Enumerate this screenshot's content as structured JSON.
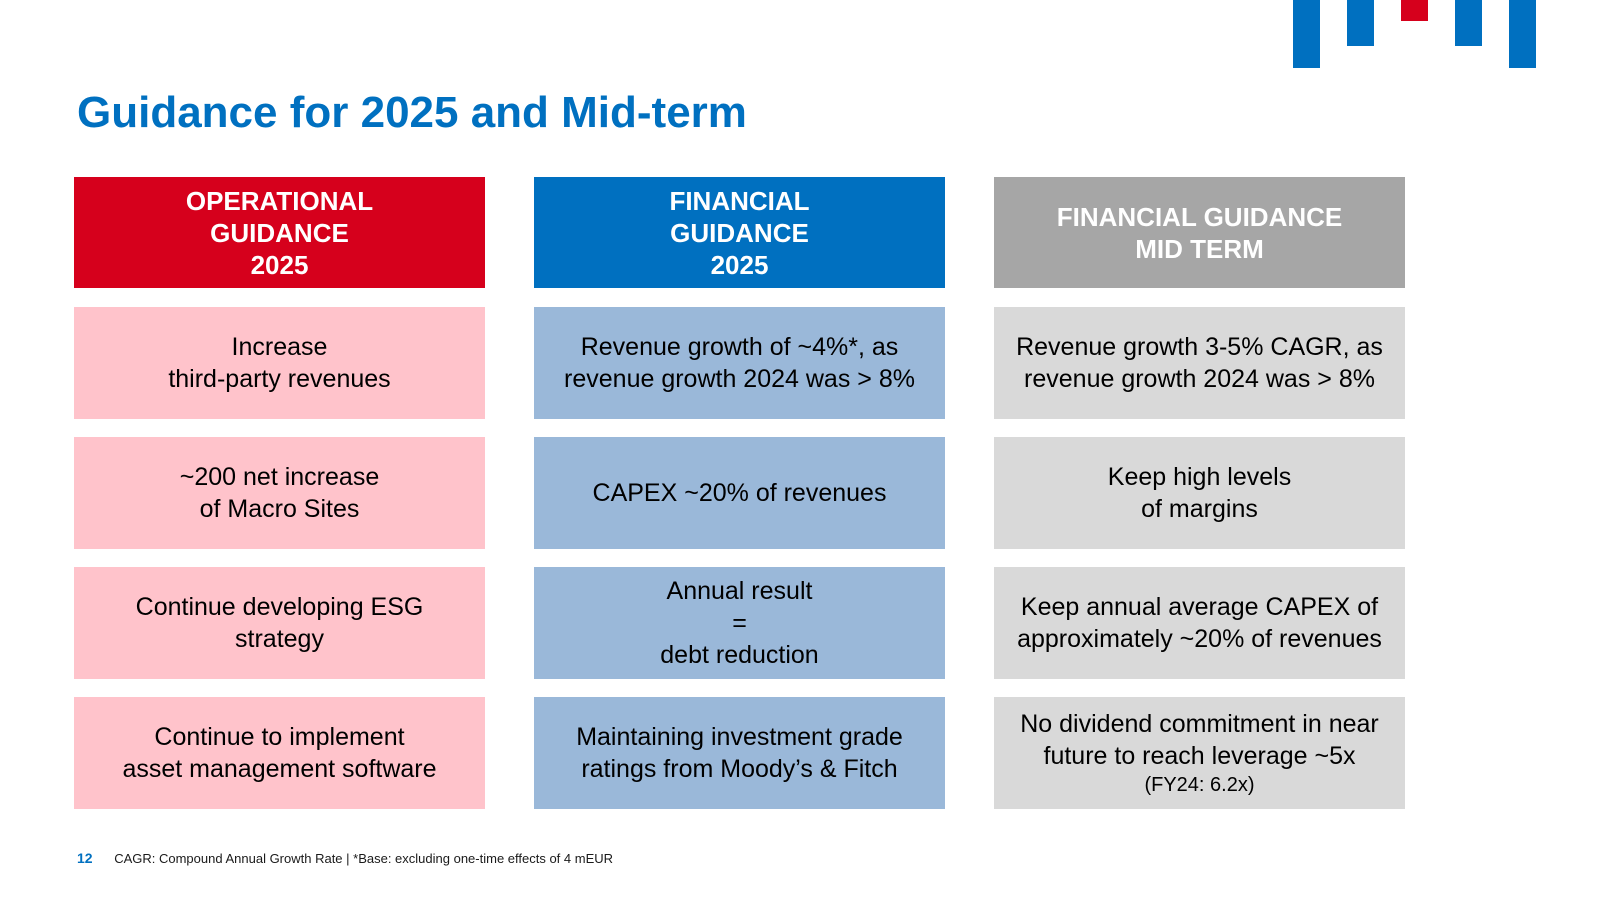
{
  "title": "Guidance for 2025 and Mid-term",
  "colors": {
    "title_blue": "#0070c0",
    "red_header": "#d6001c",
    "blue_header": "#0070c0",
    "gray_header": "#a6a6a6",
    "pink_cell": "#ffc3cb",
    "light_blue_cell": "#9ab8d9",
    "light_gray_cell": "#d9d9d9",
    "logo_blue": "#0070c0",
    "logo_red": "#d6001c"
  },
  "columns": [
    {
      "header": "OPERATIONAL\nGUIDANCE\n2025",
      "cells": [
        {
          "text": "Increase\nthird-party revenues"
        },
        {
          "text": "~200 net increase\nof Macro Sites"
        },
        {
          "text": "Continue developing ESG\nstrategy"
        },
        {
          "text": "Continue to implement\nasset management software"
        }
      ]
    },
    {
      "header": "FINANCIAL\nGUIDANCE\n2025",
      "cells": [
        {
          "text": "Revenue growth of ~4%*, as\nrevenue growth 2024 was > 8%"
        },
        {
          "text": "CAPEX ~20% of revenues"
        },
        {
          "text": "Annual result\n=\ndebt reduction"
        },
        {
          "text": "Maintaining investment grade\nratings from Moody’s & Fitch"
        }
      ]
    },
    {
      "header": "FINANCIAL GUIDANCE\nMID TERM",
      "cells": [
        {
          "text": "Revenue growth 3-5% CAGR, as\nrevenue growth 2024 was > 8%"
        },
        {
          "text": "Keep high levels\nof margins"
        },
        {
          "text": "Keep annual average CAPEX of\napproximately ~20% of revenues"
        },
        {
          "text": "No dividend commitment in near\nfuture to reach leverage ~5x",
          "sub": "(FY24: 6.2x)"
        }
      ]
    }
  ],
  "footer": {
    "page_number": "12",
    "note": "CAGR: Compound Annual Growth Rate | *Base: excluding one-time effects of 4 mEUR"
  }
}
